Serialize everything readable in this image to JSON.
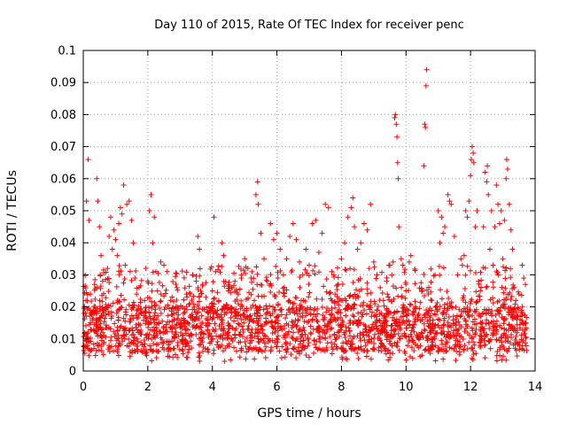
{
  "chart_data": {
    "type": "scatter",
    "title": "Day 110 of 2015, Rate Of TEC Index for receiver penc",
    "xlabel": "GPS time / hours",
    "ylabel": "ROTI / TECUs",
    "xlim": [
      0,
      14
    ],
    "ylim": [
      0,
      0.1
    ],
    "xticks": [
      "0",
      "2",
      "4",
      "6",
      "8",
      "10",
      "12",
      "14"
    ],
    "yticks": [
      "0",
      "0.01",
      "0.02",
      "0.03",
      "0.04",
      "0.05",
      "0.06",
      "0.07",
      "0.08",
      "0.09",
      "0.1"
    ],
    "grid": true,
    "marker": "+",
    "color": "#ff0000",
    "series": [
      {
        "name": "ROTI",
        "points": [
          [
            0.02,
            0.018
          ],
          [
            0.05,
            0.012
          ],
          [
            0.08,
            0.022
          ],
          [
            0.1,
            0.053
          ],
          [
            0.15,
            0.066
          ],
          [
            0.18,
            0.047
          ],
          [
            0.22,
            0.024
          ],
          [
            0.28,
            0.016
          ],
          [
            0.35,
            0.027
          ],
          [
            0.42,
            0.06
          ],
          [
            0.45,
            0.053
          ],
          [
            0.5,
            0.045
          ],
          [
            0.55,
            0.036
          ],
          [
            0.6,
            0.028
          ],
          [
            0.65,
            0.011
          ],
          [
            0.7,
            0.02
          ],
          [
            0.75,
            0.032
          ],
          [
            0.8,
            0.042
          ],
          [
            0.85,
            0.048
          ],
          [
            0.9,
            0.038
          ],
          [
            0.95,
            0.044
          ],
          [
            1.0,
            0.041
          ],
          [
            1.05,
            0.036
          ],
          [
            1.1,
            0.046
          ],
          [
            1.15,
            0.051
          ],
          [
            1.2,
            0.049
          ],
          [
            1.25,
            0.058
          ],
          [
            1.3,
            0.033
          ],
          [
            1.35,
            0.052
          ],
          [
            1.42,
            0.053
          ],
          [
            1.5,
            0.047
          ],
          [
            1.55,
            0.04
          ],
          [
            1.6,
            0.029
          ],
          [
            1.65,
            0.024
          ],
          [
            1.7,
            0.012
          ],
          [
            1.8,
            0.018
          ],
          [
            1.9,
            0.022
          ],
          [
            2.0,
            0.028
          ],
          [
            2.05,
            0.05
          ],
          [
            2.1,
            0.055
          ],
          [
            2.15,
            0.04
          ],
          [
            2.2,
            0.048
          ],
          [
            2.25,
            0.031
          ],
          [
            2.3,
            0.025
          ],
          [
            2.4,
            0.034
          ],
          [
            2.5,
            0.033
          ],
          [
            2.6,
            0.031
          ],
          [
            2.7,
            0.022
          ],
          [
            2.8,
            0.018
          ],
          [
            2.9,
            0.026
          ],
          [
            3.0,
            0.015
          ],
          [
            3.1,
            0.018
          ],
          [
            3.2,
            0.024
          ],
          [
            3.3,
            0.021
          ],
          [
            3.4,
            0.03
          ],
          [
            3.5,
            0.028
          ],
          [
            3.55,
            0.042
          ],
          [
            3.6,
            0.038
          ],
          [
            3.7,
            0.027
          ],
          [
            3.8,
            0.023
          ],
          [
            3.9,
            0.02
          ],
          [
            4.0,
            0.025
          ],
          [
            4.05,
            0.048
          ],
          [
            4.1,
            0.031
          ],
          [
            4.2,
            0.022
          ],
          [
            4.3,
            0.04
          ],
          [
            4.35,
            0.036
          ],
          [
            4.5,
            0.025
          ],
          [
            4.6,
            0.026
          ],
          [
            4.7,
            0.028
          ],
          [
            4.8,
            0.024
          ],
          [
            4.9,
            0.029
          ],
          [
            5.0,
            0.035
          ],
          [
            5.1,
            0.032
          ],
          [
            5.2,
            0.029
          ],
          [
            5.3,
            0.022
          ],
          [
            5.35,
            0.055
          ],
          [
            5.4,
            0.059
          ],
          [
            5.42,
            0.052
          ],
          [
            5.5,
            0.043
          ],
          [
            5.6,
            0.035
          ],
          [
            5.7,
            0.028
          ],
          [
            5.8,
            0.046
          ],
          [
            5.9,
            0.041
          ],
          [
            6.0,
            0.043
          ],
          [
            6.1,
            0.038
          ],
          [
            6.2,
            0.03
          ],
          [
            6.3,
            0.035
          ],
          [
            6.4,
            0.042
          ],
          [
            6.5,
            0.046
          ],
          [
            6.6,
            0.041
          ],
          [
            6.7,
            0.034
          ],
          [
            6.8,
            0.03
          ],
          [
            6.9,
            0.038
          ],
          [
            7.0,
            0.033
          ],
          [
            7.1,
            0.046
          ],
          [
            7.2,
            0.047
          ],
          [
            7.3,
            0.037
          ],
          [
            7.4,
            0.043
          ],
          [
            7.5,
            0.052
          ],
          [
            7.6,
            0.051
          ],
          [
            7.7,
            0.031
          ],
          [
            7.8,
            0.024
          ],
          [
            7.9,
            0.027
          ],
          [
            8.0,
            0.035
          ],
          [
            8.1,
            0.04
          ],
          [
            8.2,
            0.048
          ],
          [
            8.3,
            0.051
          ],
          [
            8.35,
            0.054
          ],
          [
            8.4,
            0.045
          ],
          [
            8.5,
            0.038
          ],
          [
            8.6,
            0.04
          ],
          [
            8.7,
            0.046
          ],
          [
            8.8,
            0.044
          ],
          [
            8.9,
            0.052
          ],
          [
            9.0,
            0.034
          ],
          [
            9.1,
            0.03
          ],
          [
            9.2,
            0.026
          ],
          [
            9.3,
            0.022
          ],
          [
            9.4,
            0.028
          ],
          [
            9.5,
            0.033
          ],
          [
            9.6,
            0.034
          ],
          [
            9.65,
            0.079
          ],
          [
            9.67,
            0.08
          ],
          [
            9.7,
            0.077
          ],
          [
            9.72,
            0.073
          ],
          [
            9.74,
            0.065
          ],
          [
            9.76,
            0.06
          ],
          [
            9.78,
            0.045
          ],
          [
            9.85,
            0.035
          ],
          [
            9.9,
            0.033
          ],
          [
            10.0,
            0.025
          ],
          [
            10.1,
            0.034
          ],
          [
            10.15,
            0.036
          ],
          [
            10.3,
            0.02
          ],
          [
            10.5,
            0.025
          ],
          [
            10.55,
            0.064
          ],
          [
            10.58,
            0.077
          ],
          [
            10.6,
            0.076
          ],
          [
            10.62,
            0.089
          ],
          [
            10.64,
            0.094
          ],
          [
            10.8,
            0.022
          ],
          [
            10.9,
            0.03
          ],
          [
            11.0,
            0.05
          ],
          [
            11.05,
            0.04
          ],
          [
            11.1,
            0.048
          ],
          [
            11.15,
            0.043
          ],
          [
            11.2,
            0.045
          ],
          [
            11.3,
            0.055
          ],
          [
            11.35,
            0.053
          ],
          [
            11.4,
            0.052
          ],
          [
            11.5,
            0.042
          ],
          [
            11.6,
            0.03
          ],
          [
            11.7,
            0.035
          ],
          [
            11.8,
            0.036
          ],
          [
            11.85,
            0.05
          ],
          [
            11.9,
            0.048
          ],
          [
            11.95,
            0.053
          ],
          [
            12.0,
            0.061
          ],
          [
            12.02,
            0.066
          ],
          [
            12.05,
            0.07
          ],
          [
            12.08,
            0.068
          ],
          [
            12.1,
            0.065
          ],
          [
            12.15,
            0.045
          ],
          [
            12.2,
            0.05
          ],
          [
            12.3,
            0.025
          ],
          [
            12.4,
            0.045
          ],
          [
            12.45,
            0.062
          ],
          [
            12.5,
            0.059
          ],
          [
            12.52,
            0.064
          ],
          [
            12.55,
            0.055
          ],
          [
            12.6,
            0.038
          ],
          [
            12.65,
            0.05
          ],
          [
            12.7,
            0.033
          ],
          [
            12.75,
            0.045
          ],
          [
            12.8,
            0.058
          ],
          [
            12.85,
            0.052
          ],
          [
            12.9,
            0.046
          ],
          [
            12.95,
            0.05
          ],
          [
            13.0,
            0.035
          ],
          [
            13.05,
            0.047
          ],
          [
            13.1,
            0.06
          ],
          [
            13.12,
            0.066
          ],
          [
            13.15,
            0.063
          ],
          [
            13.2,
            0.052
          ],
          [
            13.25,
            0.044
          ],
          [
            13.3,
            0.038
          ],
          [
            13.35,
            0.026
          ],
          [
            13.4,
            0.022
          ],
          [
            13.5,
            0.024
          ],
          [
            13.6,
            0.033
          ],
          [
            13.65,
            0.029
          ],
          [
            13.7,
            0.027
          ],
          [
            13.72,
            0.015
          ]
        ]
      }
    ]
  }
}
